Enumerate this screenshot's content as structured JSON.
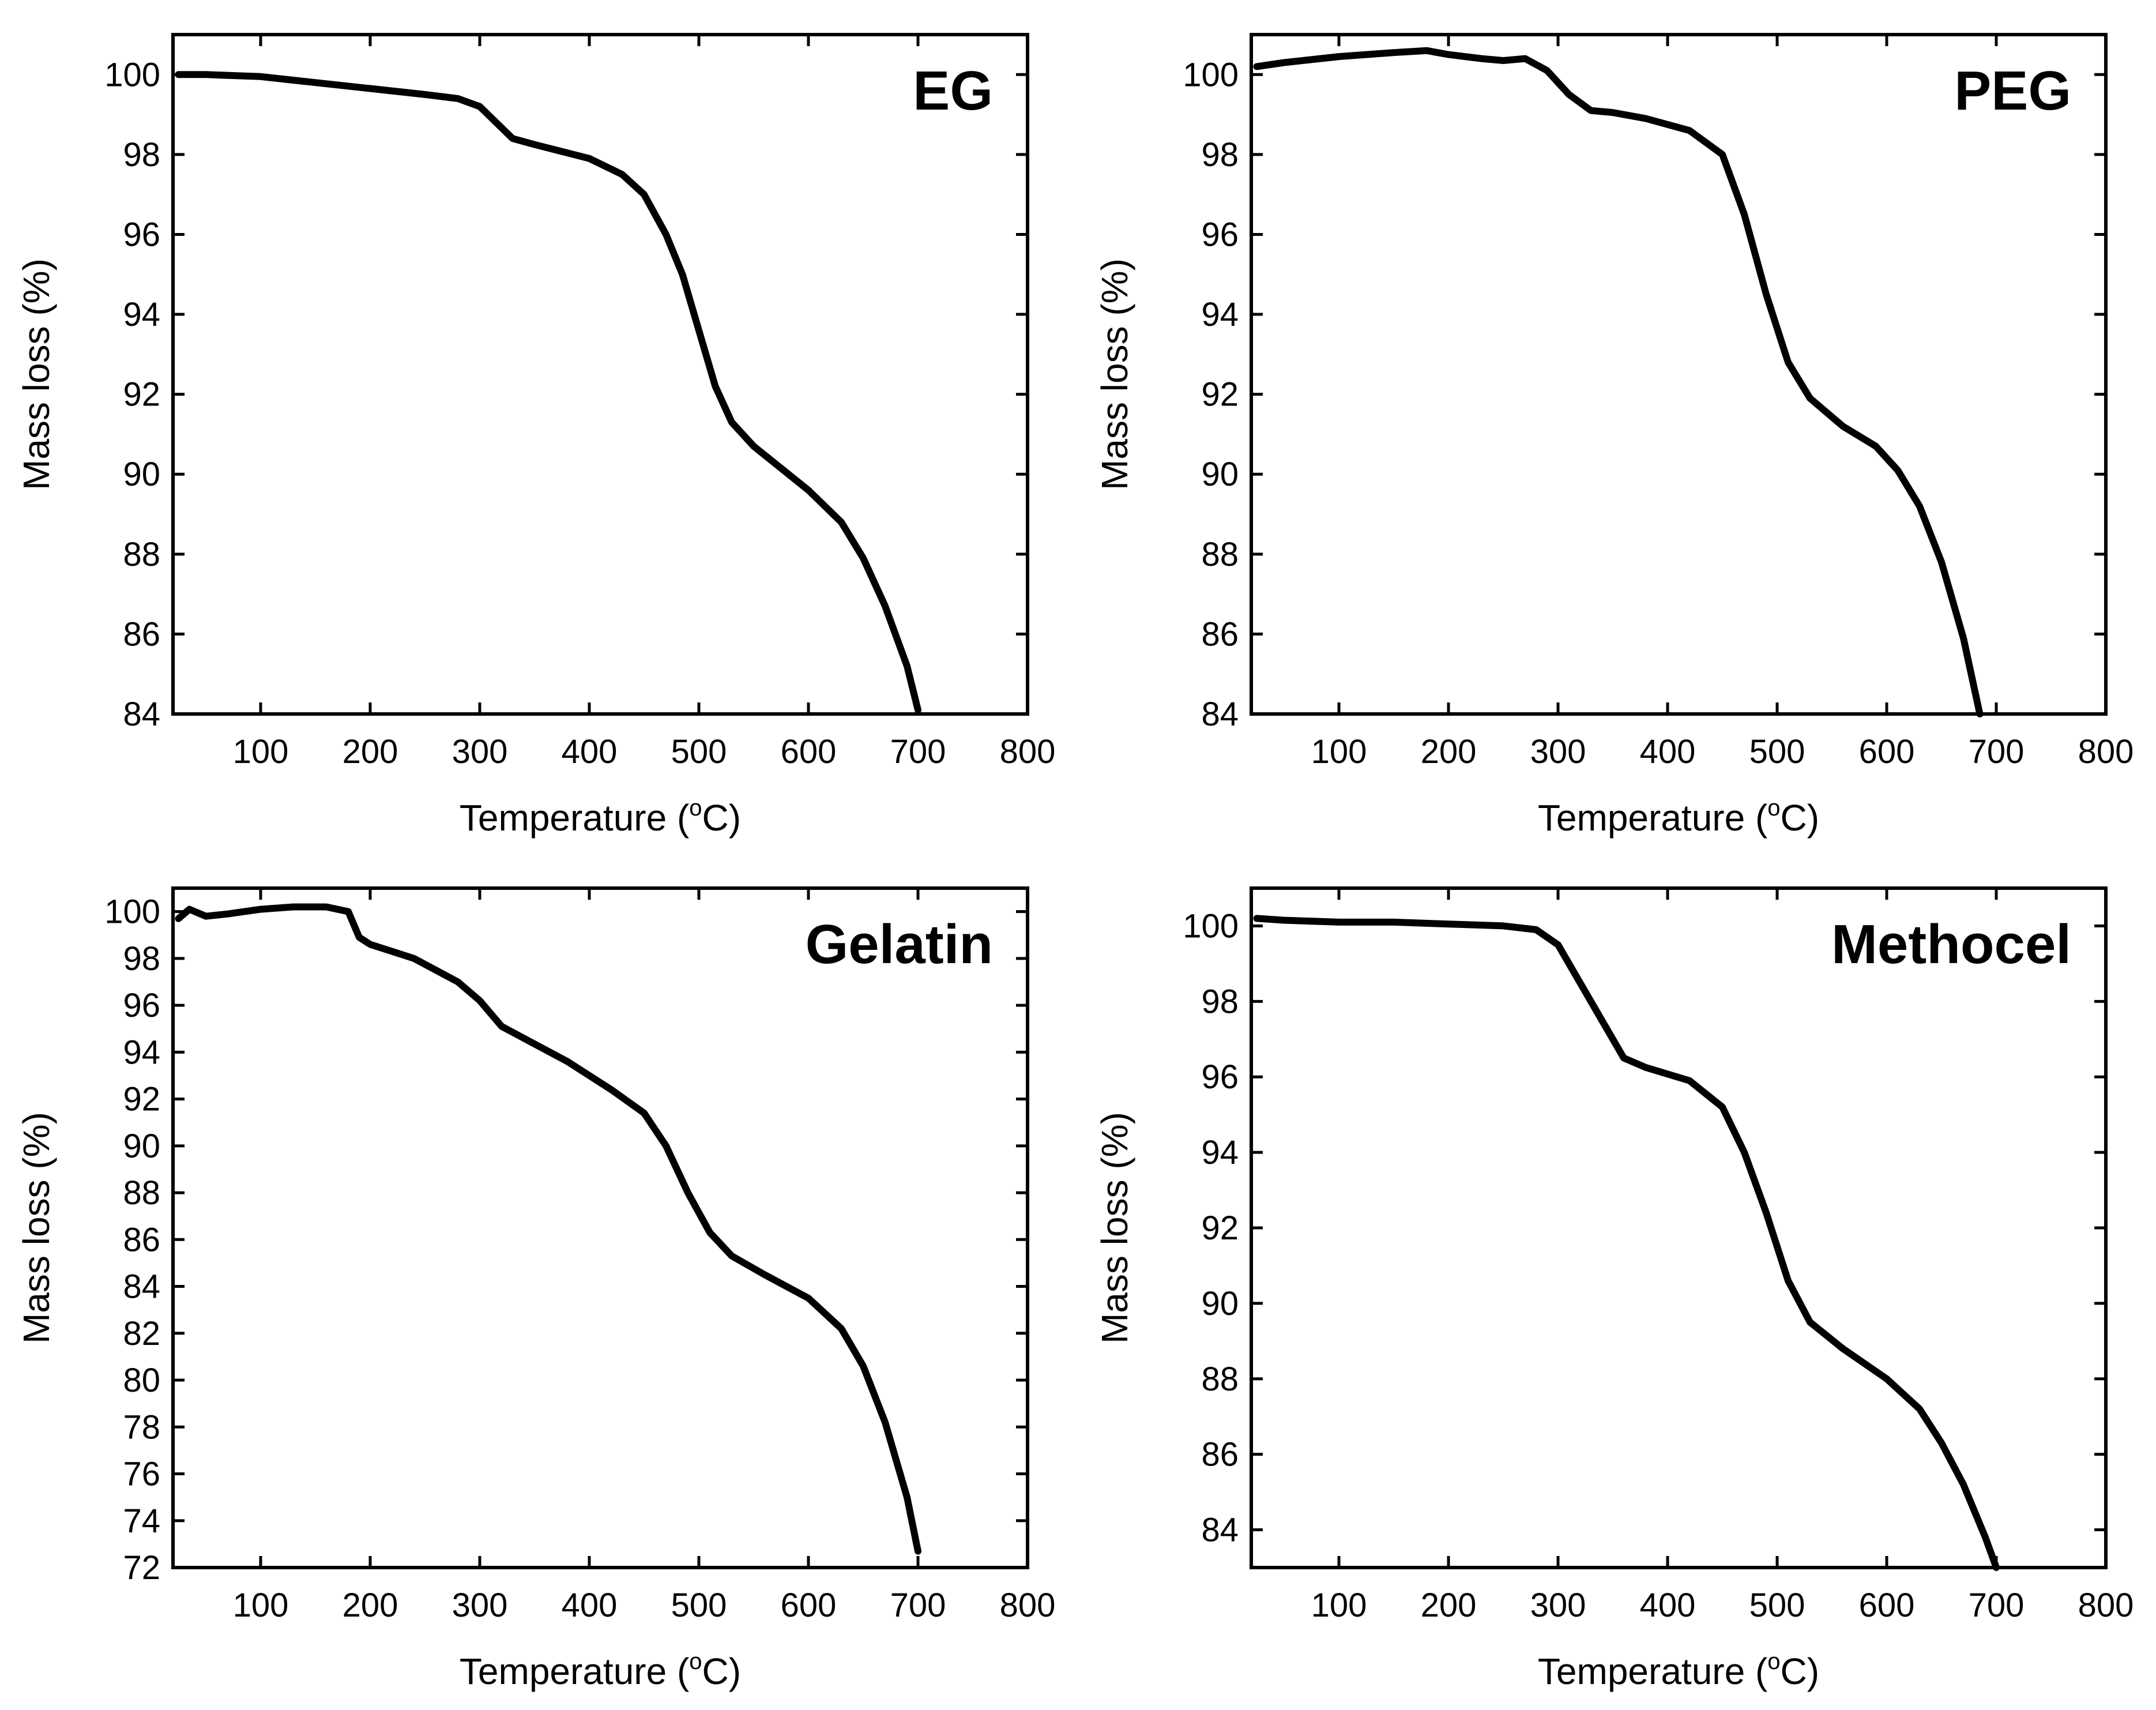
{
  "figure": {
    "x_axis_title": "Temperature (",
    "x_axis_unit_sup": "o",
    "x_axis_unit_tail": "C)",
    "y_axis_title": "Mass loss (%)"
  },
  "chart_data": [
    {
      "type": "line",
      "title": "EG",
      "xlabel": "Temperature (oC)",
      "ylabel": "Mass loss (%)",
      "xlim": [
        20,
        800
      ],
      "ylim": [
        84,
        101
      ],
      "xticks": [
        100,
        200,
        300,
        400,
        500,
        600,
        700,
        800
      ],
      "yticks": [
        84,
        86,
        88,
        90,
        92,
        94,
        96,
        98,
        100
      ],
      "series": [
        {
          "name": "EG",
          "x": [
            25,
            50,
            100,
            150,
            200,
            250,
            280,
            300,
            315,
            330,
            350,
            400,
            430,
            450,
            470,
            485,
            500,
            515,
            530,
            550,
            600,
            630,
            650,
            670,
            690,
            700
          ],
          "y": [
            100.0,
            100.0,
            99.95,
            99.8,
            99.65,
            99.5,
            99.4,
            99.2,
            98.8,
            98.4,
            98.25,
            97.9,
            97.5,
            97.0,
            96.0,
            95.0,
            93.6,
            92.2,
            91.3,
            90.7,
            89.6,
            88.8,
            87.9,
            86.7,
            85.2,
            84.1
          ]
        }
      ]
    },
    {
      "type": "line",
      "title": "PEG",
      "xlabel": "Temperature (oC)",
      "ylabel": "Mass loss (%)",
      "xlim": [
        20,
        800
      ],
      "ylim": [
        84,
        101
      ],
      "xticks": [
        100,
        200,
        300,
        400,
        500,
        600,
        700,
        800
      ],
      "yticks": [
        84,
        86,
        88,
        90,
        92,
        94,
        96,
        98,
        100
      ],
      "series": [
        {
          "name": "PEG",
          "x": [
            25,
            50,
            100,
            150,
            180,
            200,
            230,
            250,
            270,
            290,
            310,
            330,
            350,
            380,
            420,
            450,
            470,
            490,
            510,
            530,
            560,
            590,
            610,
            630,
            650,
            670,
            685
          ],
          "y": [
            100.2,
            100.3,
            100.45,
            100.55,
            100.6,
            100.5,
            100.4,
            100.35,
            100.4,
            100.1,
            99.5,
            99.1,
            99.05,
            98.9,
            98.6,
            98.0,
            96.5,
            94.5,
            92.8,
            91.9,
            91.2,
            90.7,
            90.1,
            89.2,
            87.8,
            85.9,
            84.0
          ]
        }
      ]
    },
    {
      "type": "line",
      "title": "Gelatin",
      "xlabel": "Temperature (oC)",
      "ylabel": "Mass loss (%)",
      "xlim": [
        20,
        800
      ],
      "ylim": [
        72,
        101
      ],
      "xticks": [
        100,
        200,
        300,
        400,
        500,
        600,
        700,
        800
      ],
      "yticks": [
        72,
        74,
        76,
        78,
        80,
        82,
        84,
        86,
        88,
        90,
        92,
        94,
        96,
        98,
        100
      ],
      "series": [
        {
          "name": "Gelatin",
          "x": [
            25,
            35,
            50,
            70,
            100,
            130,
            160,
            180,
            190,
            200,
            240,
            280,
            300,
            320,
            340,
            380,
            420,
            450,
            470,
            490,
            510,
            530,
            560,
            600,
            630,
            650,
            670,
            690,
            700
          ],
          "y": [
            99.7,
            100.1,
            99.8,
            99.9,
            100.1,
            100.2,
            100.2,
            100.0,
            98.9,
            98.6,
            98.0,
            97.0,
            96.2,
            95.1,
            94.6,
            93.6,
            92.4,
            91.4,
            90.0,
            88.0,
            86.3,
            85.3,
            84.5,
            83.5,
            82.2,
            80.6,
            78.2,
            75.0,
            72.7
          ]
        }
      ]
    },
    {
      "type": "line",
      "title": "Methocel",
      "xlabel": "Temperature (oC)",
      "ylabel": "Mass loss (%)",
      "xlim": [
        20,
        800
      ],
      "ylim": [
        83,
        101
      ],
      "xticks": [
        100,
        200,
        300,
        400,
        500,
        600,
        700,
        800
      ],
      "yticks": [
        84,
        86,
        88,
        90,
        92,
        94,
        96,
        98,
        100
      ],
      "series": [
        {
          "name": "Methocel",
          "x": [
            25,
            50,
            100,
            150,
            200,
            250,
            280,
            300,
            320,
            340,
            360,
            380,
            420,
            450,
            470,
            490,
            510,
            530,
            560,
            600,
            630,
            650,
            670,
            690,
            700
          ],
          "y": [
            100.2,
            100.15,
            100.1,
            100.1,
            100.05,
            100.0,
            99.9,
            99.5,
            98.5,
            97.5,
            96.5,
            96.25,
            95.9,
            95.2,
            94.0,
            92.4,
            90.6,
            89.5,
            88.8,
            88.0,
            87.2,
            86.3,
            85.2,
            83.8,
            83.0
          ]
        }
      ]
    }
  ]
}
